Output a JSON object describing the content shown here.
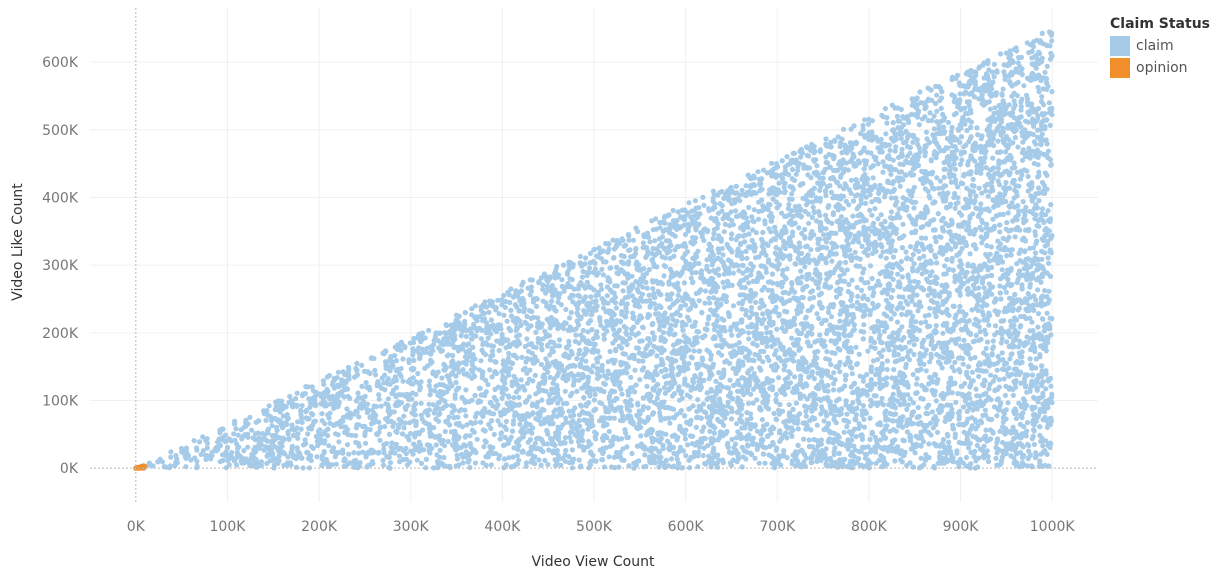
{
  "colors": {
    "claim": "#a6cbe8",
    "opinion": "#f28e2b",
    "grid": "#f0f0f0",
    "zero_line": "#bbbbbb"
  },
  "chart_data": {
    "type": "scatter",
    "xlabel": "Video View Count",
    "ylabel": "Video Like Count",
    "xlim": [
      -50000,
      1050000
    ],
    "ylim": [
      -50000,
      680000
    ],
    "grid": true,
    "legend_placement": "top-right",
    "x_ticks": [
      {
        "value": 0,
        "label": "0K"
      },
      {
        "value": 100000,
        "label": "100K"
      },
      {
        "value": 200000,
        "label": "200K"
      },
      {
        "value": 300000,
        "label": "300K"
      },
      {
        "value": 400000,
        "label": "400K"
      },
      {
        "value": 500000,
        "label": "500K"
      },
      {
        "value": 600000,
        "label": "600K"
      },
      {
        "value": 700000,
        "label": "700K"
      },
      {
        "value": 800000,
        "label": "800K"
      },
      {
        "value": 900000,
        "label": "900K"
      },
      {
        "value": 1000000,
        "label": "1000K"
      }
    ],
    "y_ticks": [
      {
        "value": 0,
        "label": "0K"
      },
      {
        "value": 100000,
        "label": "100K"
      },
      {
        "value": 200000,
        "label": "200K"
      },
      {
        "value": 300000,
        "label": "300K"
      },
      {
        "value": 400000,
        "label": "400K"
      },
      {
        "value": 500000,
        "label": "500K"
      },
      {
        "value": 600000,
        "label": "600K"
      }
    ],
    "legend_title": "Claim Status",
    "series": [
      {
        "name": "claim",
        "color": "#a6cbe8",
        "distribution": "like count between 0 and about 0.65 x view count; view count 0 to 1000K"
      },
      {
        "name": "opinion",
        "color": "#f28e2b",
        "distribution": "clustered near 0K views and 0K likes"
      }
    ]
  }
}
